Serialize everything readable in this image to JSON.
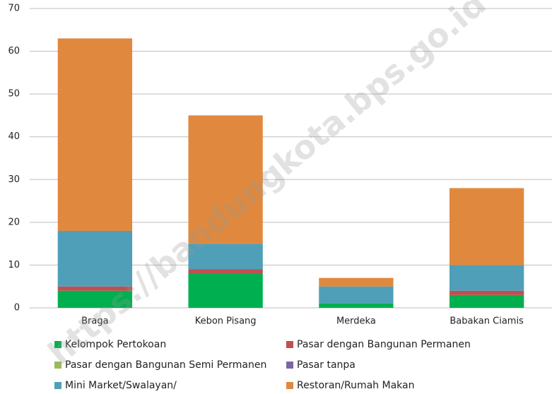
{
  "chart_data": {
    "type": "stacked_bar",
    "categories": [
      "Braga",
      "Kebon Pisang",
      "Merdeka",
      "Babakan Ciamis"
    ],
    "series": [
      {
        "name": "Kelompok Pertokoan",
        "color": "#00b050",
        "values": [
          4,
          8,
          1,
          3
        ]
      },
      {
        "name": "Pasar dengan Bangunan Permanen",
        "color": "#c0504d",
        "values": [
          1,
          1,
          0,
          1
        ]
      },
      {
        "name": "Pasar dengan Bangunan Semi Permanen",
        "color": "#9bbb59",
        "values": [
          0,
          0,
          0,
          0
        ]
      },
      {
        "name": "Pasar tanpa",
        "color": "#8064a2",
        "values": [
          0,
          0,
          0,
          0
        ]
      },
      {
        "name": "Mini Market/Swalayan/",
        "color": "#4f9fb8",
        "values": [
          13,
          6,
          4,
          6
        ]
      },
      {
        "name": "Restoran/Rumah Makan",
        "color": "#e0893e",
        "values": [
          45,
          30,
          2,
          18
        ]
      }
    ],
    "ylim": [
      0,
      70
    ],
    "yticks": [
      0,
      10,
      20,
      30,
      40,
      50,
      60,
      70
    ],
    "grid": true,
    "watermark": "https://bandungkota.bps.go.id"
  }
}
